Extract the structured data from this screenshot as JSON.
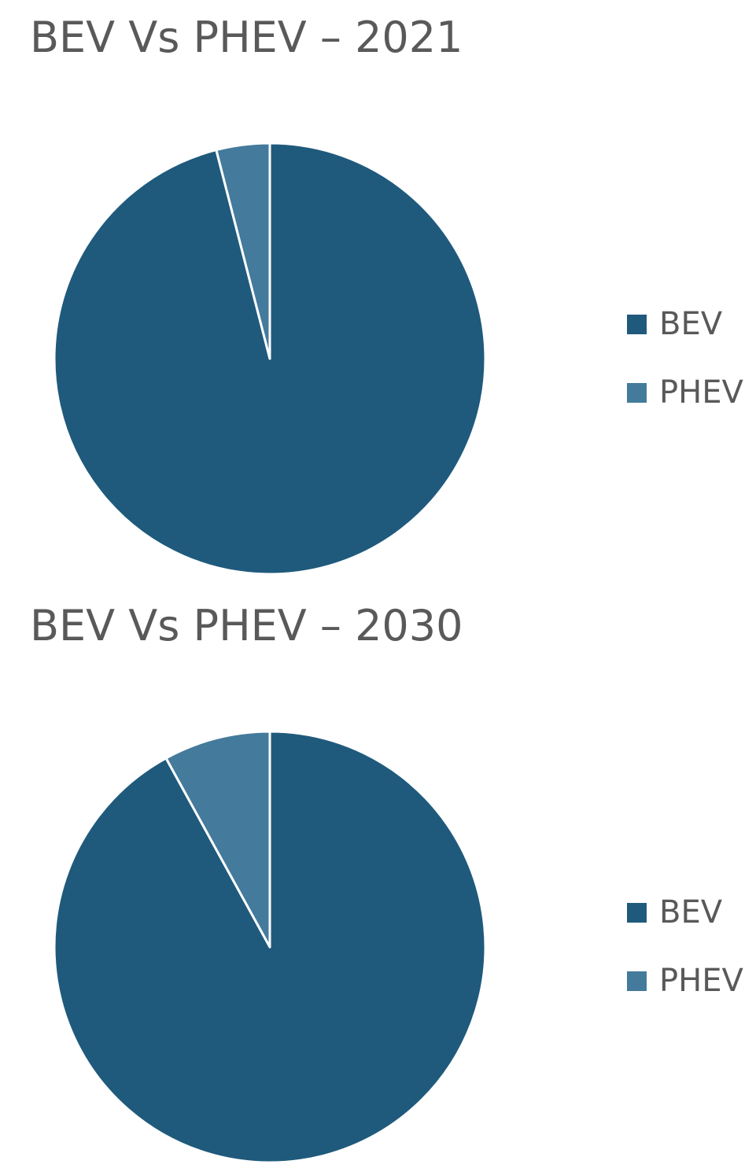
{
  "chart_data": [
    {
      "type": "pie",
      "title": "BEV Vs PHEV – 2021",
      "categories": [
        "BEV",
        "PHEV"
      ],
      "values": [
        96,
        4
      ],
      "colors": [
        "#1f5a7c",
        "#447a9c"
      ],
      "legend": "right"
    },
    {
      "type": "pie",
      "title": "BEV Vs PHEV – 2030",
      "categories": [
        "BEV",
        "PHEV"
      ],
      "values": [
        92,
        8
      ],
      "colors": [
        "#1f5a7c",
        "#447a9c"
      ],
      "legend": "right"
    }
  ]
}
